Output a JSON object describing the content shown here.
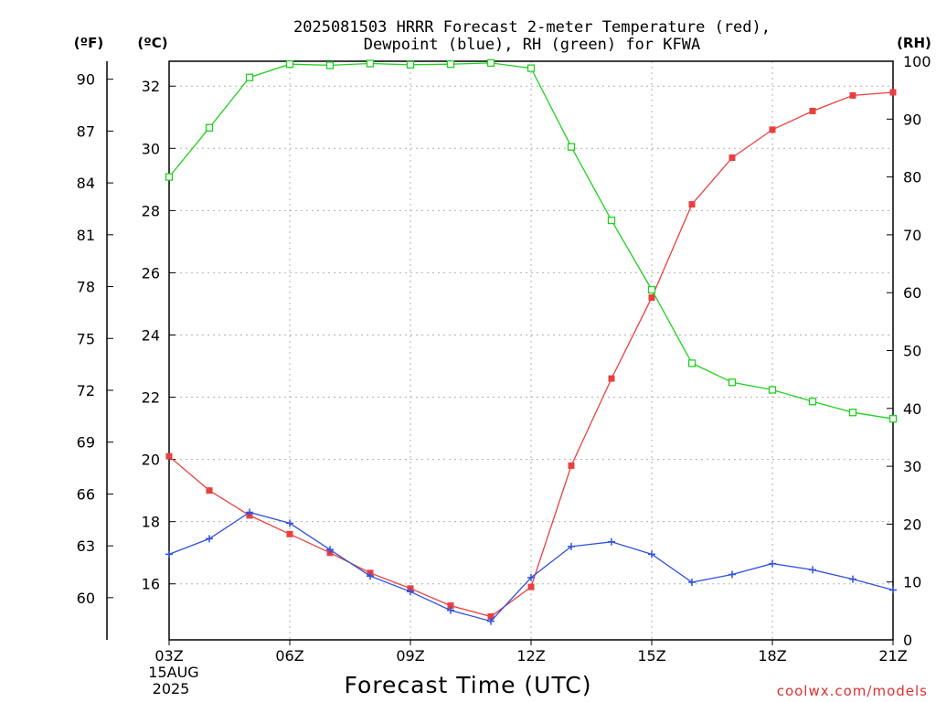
{
  "chart_data": {
    "type": "line",
    "title_line1": "2025081503 HRRR Forecast 2-meter Temperature (red),",
    "title_line2": "Dewpoint (blue), RH (green) for KFWA",
    "xlabel": "Forecast Time (UTC)",
    "credit": "coolwx.com/models",
    "unit_labels": {
      "f": "(ºF)",
      "c": "(ºC)",
      "rh": "(RH)"
    },
    "x_hours": [
      3,
      4,
      5,
      6,
      7,
      8,
      9,
      10,
      11,
      12,
      13,
      14,
      15,
      16,
      17,
      18,
      19,
      20,
      21
    ],
    "x_ticks": [
      {
        "hour": 3,
        "label": "03Z"
      },
      {
        "hour": 6,
        "label": "06Z"
      },
      {
        "hour": 9,
        "label": "09Z"
      },
      {
        "hour": 12,
        "label": "12Z"
      },
      {
        "hour": 15,
        "label": "15Z"
      },
      {
        "hour": 18,
        "label": "18Z"
      },
      {
        "hour": 21,
        "label": "21Z"
      }
    ],
    "date_line1": "15AUG",
    "date_line2": "2025",
    "xlim": [
      3,
      21
    ],
    "ylim_c": [
      14.2,
      32.8
    ],
    "c_ticks": [
      16,
      18,
      20,
      22,
      24,
      26,
      28,
      30,
      32
    ],
    "f_ticks": [
      60,
      63,
      66,
      69,
      72,
      75,
      78,
      81,
      84,
      87,
      90
    ],
    "ylim_rh": [
      0,
      100
    ],
    "rh_ticks": [
      0,
      10,
      20,
      30,
      40,
      50,
      60,
      70,
      80,
      90,
      100
    ],
    "colors": {
      "temperature": "#e84040",
      "dewpoint": "#3050e0",
      "rh": "#20d020"
    },
    "series": [
      {
        "key": "temperature",
        "axis": "c",
        "marker": "filled-square",
        "values": [
          20.1,
          19.0,
          18.2,
          17.6,
          17.0,
          16.35,
          15.85,
          15.3,
          14.95,
          15.9,
          19.8,
          22.6,
          25.2,
          28.2,
          29.7,
          30.6,
          31.2,
          31.7,
          31.8
        ]
      },
      {
        "key": "dewpoint",
        "axis": "c",
        "marker": "plus",
        "values": [
          16.95,
          17.45,
          18.3,
          17.95,
          17.1,
          16.25,
          15.75,
          15.15,
          14.8,
          16.2,
          17.2,
          17.35,
          16.95,
          16.05,
          16.3,
          16.65,
          16.45,
          16.15,
          15.8
        ]
      },
      {
        "key": "rh",
        "axis": "rh",
        "marker": "open-square",
        "values": [
          80.0,
          88.5,
          97.2,
          99.5,
          99.3,
          99.6,
          99.4,
          99.5,
          99.7,
          98.8,
          85.2,
          72.5,
          60.5,
          47.8,
          44.5,
          43.2,
          41.2,
          39.3,
          38.2
        ]
      }
    ]
  }
}
